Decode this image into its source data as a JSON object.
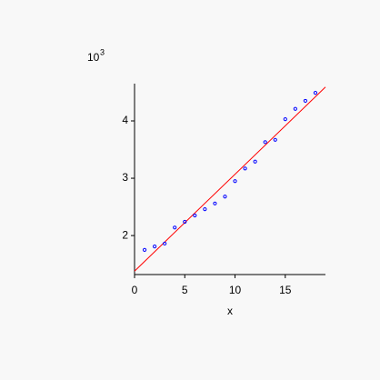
{
  "chart_data": {
    "type": "scatter",
    "x_label": "x",
    "y_multiplier": {
      "base": "10",
      "exponent": "3"
    },
    "x": [
      1,
      2,
      3,
      4,
      5,
      6,
      7,
      8,
      9,
      10,
      11,
      12,
      13,
      14,
      15,
      16,
      17,
      18
    ],
    "series": [
      {
        "color": "#0000ff",
        "values": [
          1.75,
          1.81,
          1.86,
          2.14,
          2.24,
          2.35,
          2.46,
          2.56,
          2.68,
          2.95,
          3.17,
          3.29,
          3.63,
          3.67,
          4.03,
          4.21,
          4.35,
          4.49
        ]
      }
    ],
    "fit_line": {
      "color": "#ff0000",
      "x": [
        0,
        19
      ],
      "values": [
        1.38,
        4.59
      ]
    },
    "xlim": [
      0,
      19
    ],
    "ylim": [
      1.32,
      4.65
    ],
    "xticks": [
      0,
      5,
      10,
      15
    ],
    "yticks": [
      2,
      3,
      4
    ]
  }
}
